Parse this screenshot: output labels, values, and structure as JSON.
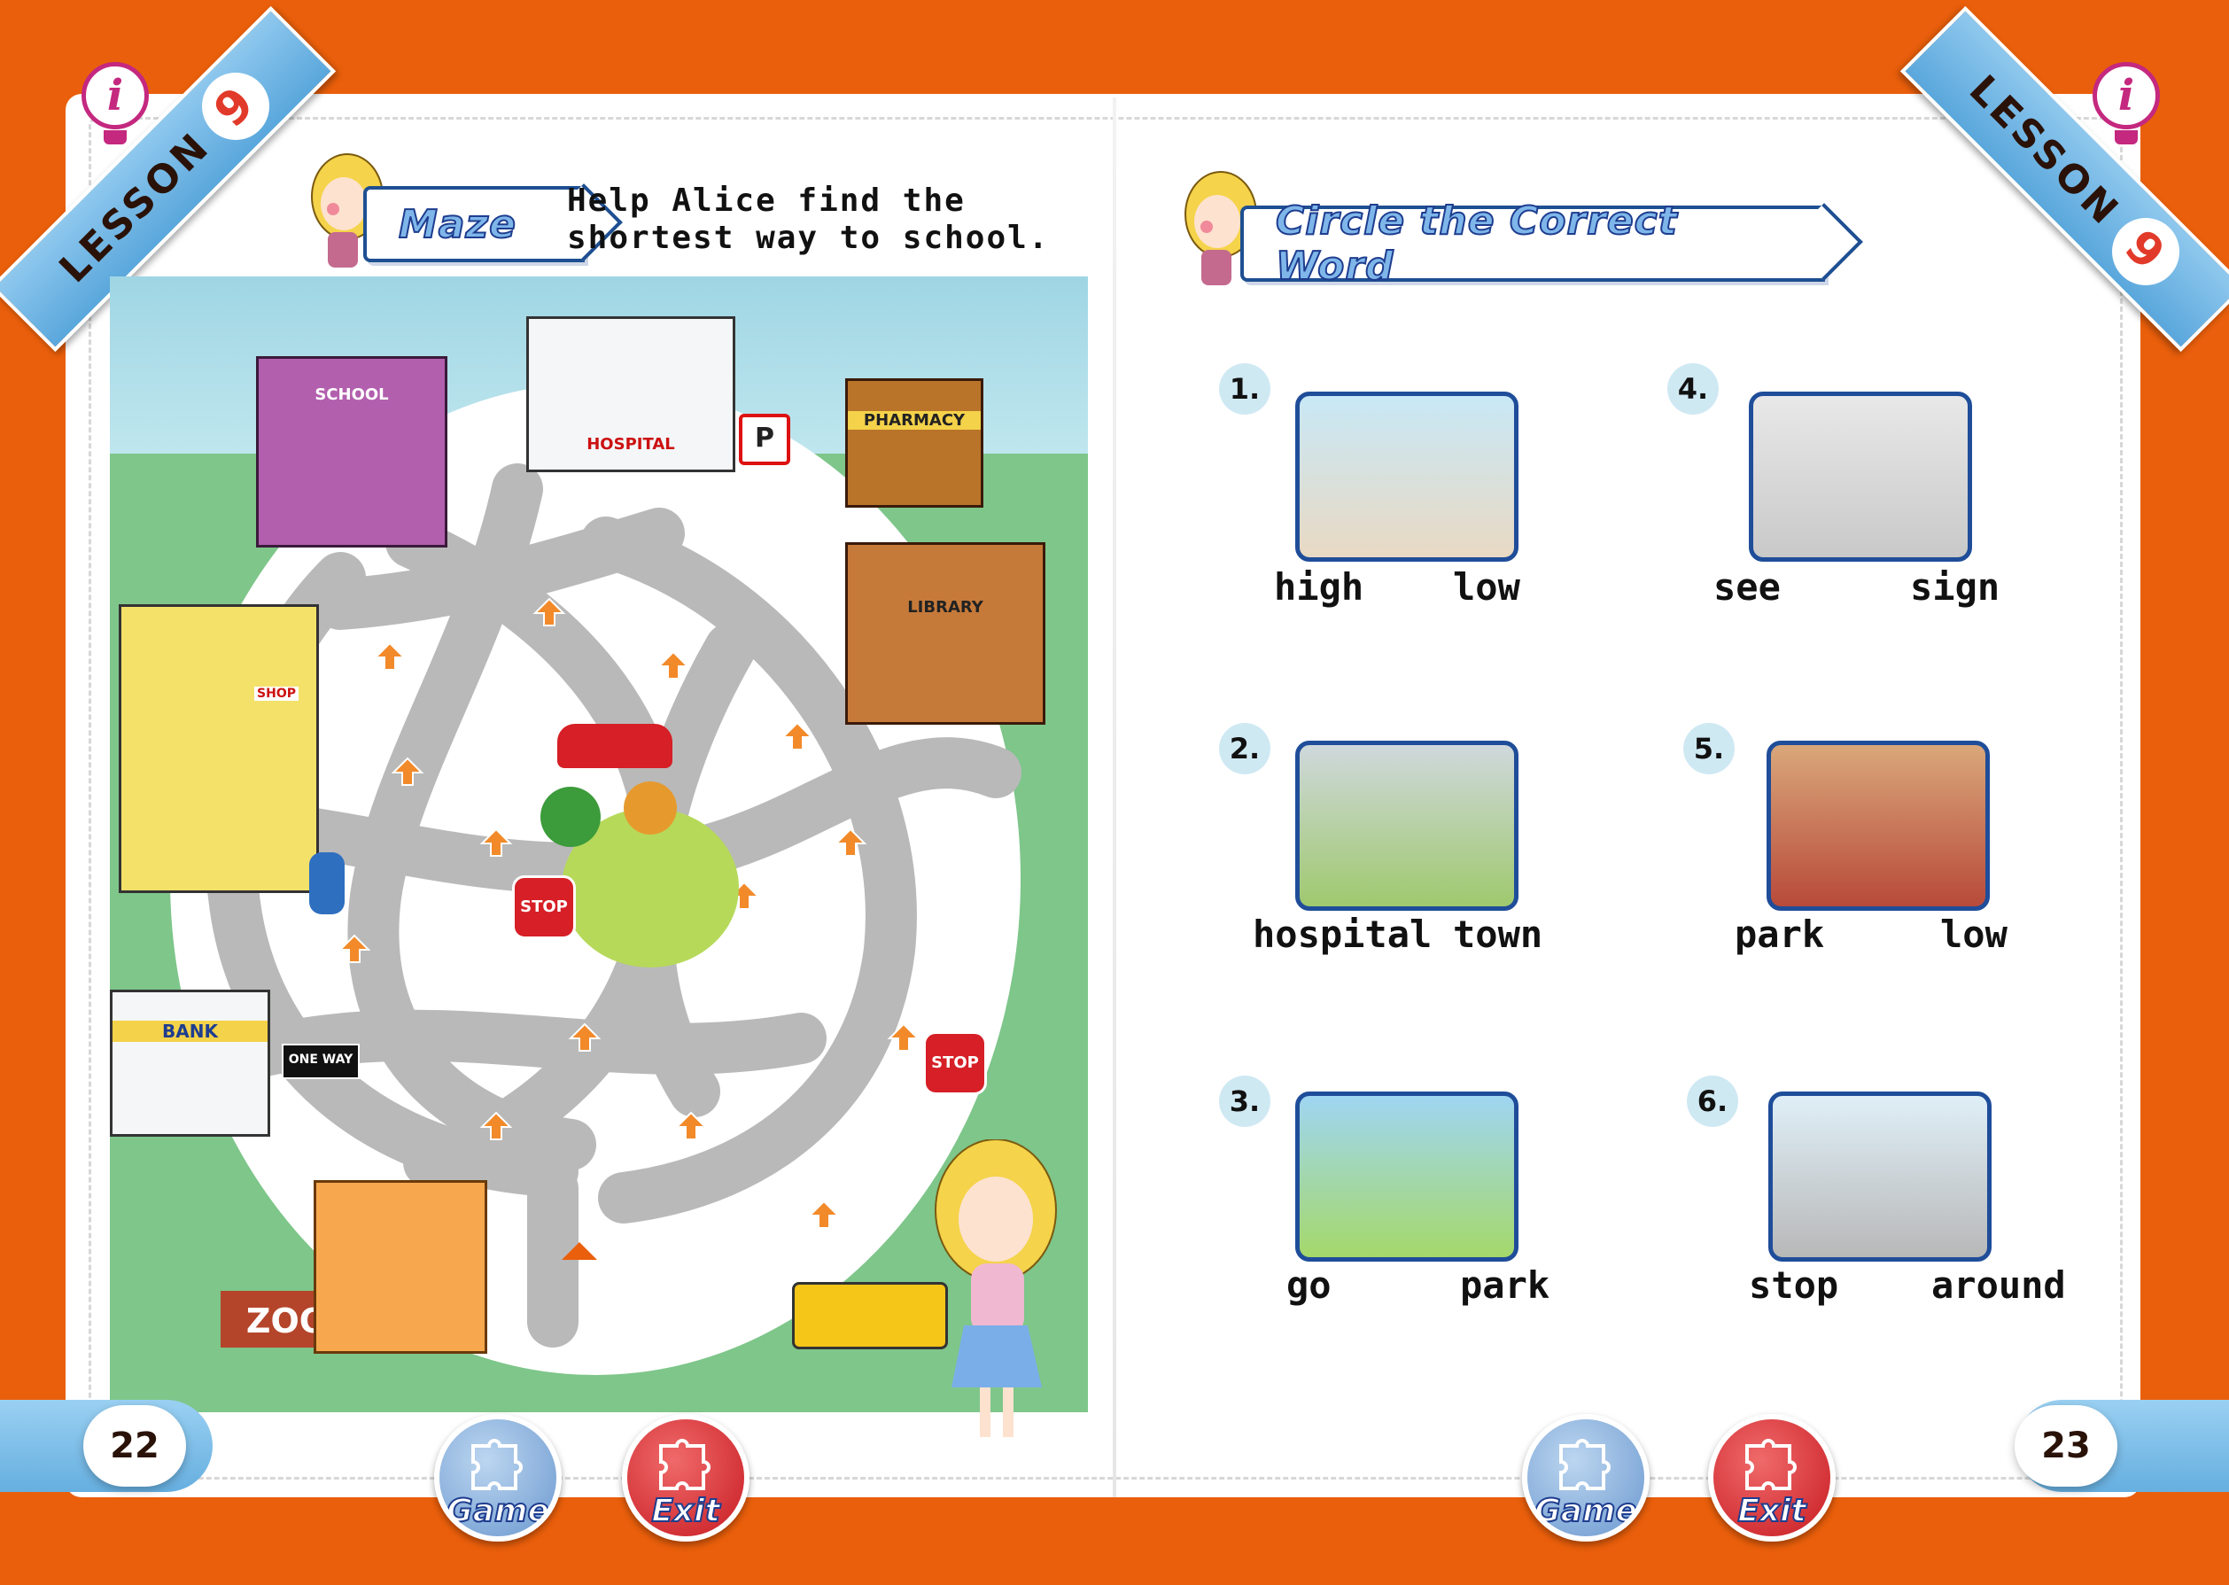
{
  "lesson": {
    "label": "LESSON",
    "number": "9"
  },
  "info_icon": "lightbulb-info-icon",
  "left_page": {
    "section_title": "Maze",
    "instruction_line1": "Help Alice find the",
    "instruction_line2": "shortest way to school.",
    "buildings": {
      "school": "SCHOOL",
      "hospital": "HOSPITAL",
      "pharmacy": "PHARMACY",
      "library": "LIBRARY",
      "shop": "SHOP",
      "bank": "BANK",
      "one_way": "ONE WAY",
      "zoo": "ZOO",
      "stop": "STOP",
      "parking": "P"
    },
    "page_number": "22"
  },
  "right_page": {
    "section_title": "Circle the Correct Word",
    "items": [
      {
        "num": "1.",
        "word_a": "high",
        "word_b": "low"
      },
      {
        "num": "2.",
        "word_a": "hospital",
        "word_b": "town"
      },
      {
        "num": "3.",
        "word_a": "go",
        "word_b": "park"
      },
      {
        "num": "4.",
        "word_a": "see",
        "word_b": "sign"
      },
      {
        "num": "5.",
        "word_a": "park",
        "word_b": "low"
      },
      {
        "num": "6.",
        "word_a": "stop",
        "word_b": "around"
      }
    ],
    "page_number": "23"
  },
  "buttons": {
    "game": "Game",
    "exit": "Exit"
  },
  "colors": {
    "frame": "#ea5f0b",
    "ribbon": "#6cb3e3",
    "title_stroke": "#1e3d8f",
    "road": "#b9b9b9",
    "arrow": "#f28a2a"
  }
}
